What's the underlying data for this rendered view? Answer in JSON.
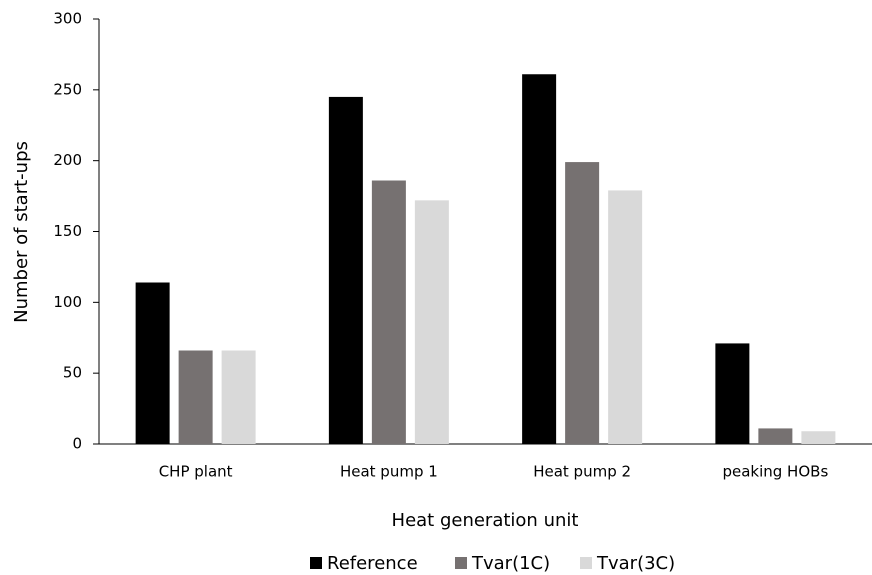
{
  "chart_data": {
    "type": "bar",
    "x_label": "Heat generation unit",
    "y_label": "Number of start-ups",
    "categories": [
      "CHP plant",
      "Heat pump 1",
      "Heat pump 2",
      "peaking HOBs"
    ],
    "series": [
      {
        "name": "Reference",
        "color": "#000000",
        "values": [
          114,
          245,
          261,
          71
        ]
      },
      {
        "name": "Tvar(1C)",
        "color": "#767171",
        "values": [
          66,
          186,
          199,
          11
        ]
      },
      {
        "name": "Tvar(3C)",
        "color": "#d9d9d9",
        "values": [
          66,
          172,
          179,
          9
        ]
      }
    ],
    "ylim": [
      0,
      300
    ],
    "yticks": [
      0,
      50,
      100,
      150,
      200,
      250,
      300
    ],
    "grid": false,
    "legend": "bottom"
  }
}
